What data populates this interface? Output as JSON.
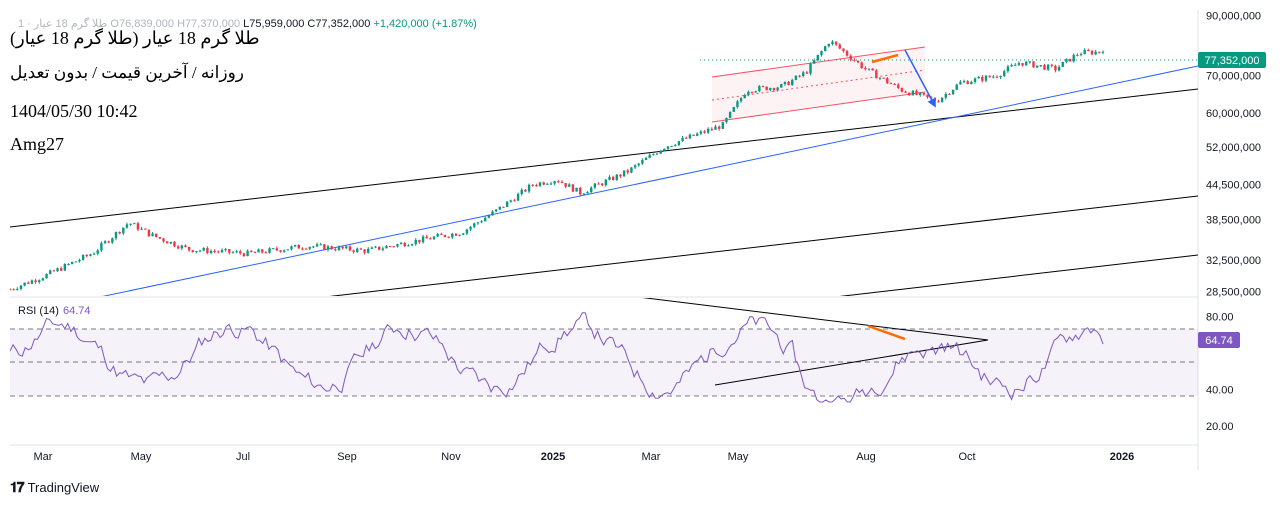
{
  "header": {
    "ohlc_prefix": "طلا گرم 18 عیار · 1",
    "open": "O76,839,000",
    "high": "H77,370,000",
    "low": "L75,959,000",
    "close": "C77,352,000",
    "change": "+1,420,000 (+1.87%)"
  },
  "annotations": {
    "title": "طلا گرم 18 عیار (طلا گرم 18 عیار)",
    "subtitle": "روزانه / آخرین قیمت / بدون تعدیل",
    "datetime": "1404/05/30 10:42",
    "author": "Amg27"
  },
  "brand": {
    "name": "TradingView"
  },
  "rsi": {
    "label": "RSI (14)",
    "value": "64.74"
  },
  "price_badge": "77,352,000",
  "rsi_badge": "64.74",
  "colors": {
    "up": "#089981",
    "down": "#f23645",
    "rsi": "#7e57c2",
    "trend_blue": "#2962ff",
    "channel": "#f7525f",
    "orange": "#ff6d00",
    "badge_green": "#089981",
    "badge_purple": "#7e57c2"
  },
  "chart_data": [
    {
      "type": "candlestick",
      "title": "",
      "ylim": [
        28000000,
        92000000
      ],
      "y_scale": "log",
      "y_ticks": [
        "90,000,000",
        "70,000,000",
        "60,000,000",
        "52,000,000",
        "44,500,000",
        "38,500,000",
        "32,500,000",
        "28,500,000"
      ],
      "y_tick_values": [
        90000000,
        70000000,
        60000000,
        52000000,
        44500000,
        38500000,
        32500000,
        28500000
      ],
      "x_ticks": [
        "Mar",
        "May",
        "Jul",
        "Sep",
        "Nov",
        "2025",
        "Mar",
        "May",
        "Aug",
        "Oct",
        "2026"
      ],
      "last_price": 77352000,
      "price_path": [
        {
          "x": 0,
          "y": 28800000
        },
        {
          "x": 0.03,
          "y": 30500000
        },
        {
          "x": 0.07,
          "y": 33500000
        },
        {
          "x": 0.1,
          "y": 38000000
        },
        {
          "x": 0.12,
          "y": 36000000
        },
        {
          "x": 0.15,
          "y": 34000000
        },
        {
          "x": 0.2,
          "y": 33400000
        },
        {
          "x": 0.25,
          "y": 34500000
        },
        {
          "x": 0.3,
          "y": 33800000
        },
        {
          "x": 0.35,
          "y": 35500000
        },
        {
          "x": 0.38,
          "y": 36500000
        },
        {
          "x": 0.41,
          "y": 40000000
        },
        {
          "x": 0.44,
          "y": 44500000
        },
        {
          "x": 0.46,
          "y": 45500000
        },
        {
          "x": 0.48,
          "y": 43000000
        },
        {
          "x": 0.52,
          "y": 47000000
        },
        {
          "x": 0.55,
          "y": 52000000
        },
        {
          "x": 0.57,
          "y": 54000000
        },
        {
          "x": 0.6,
          "y": 57000000
        },
        {
          "x": 0.62,
          "y": 66000000
        },
        {
          "x": 0.65,
          "y": 67000000
        },
        {
          "x": 0.67,
          "y": 71000000
        },
        {
          "x": 0.69,
          "y": 81000000
        },
        {
          "x": 0.72,
          "y": 72000000
        },
        {
          "x": 0.75,
          "y": 66000000
        },
        {
          "x": 0.78,
          "y": 63000000
        },
        {
          "x": 0.8,
          "y": 68000000
        },
        {
          "x": 0.83,
          "y": 70000000
        },
        {
          "x": 0.85,
          "y": 74000000
        },
        {
          "x": 0.88,
          "y": 72000000
        },
        {
          "x": 0.9,
          "y": 77000000
        },
        {
          "x": 0.92,
          "y": 77352000
        }
      ]
    },
    {
      "type": "line",
      "title": "",
      "series": [
        {
          "name": "RSI (14)",
          "last": 64.74
        }
      ],
      "ylim": [
        10,
        90
      ],
      "y_ticks": [
        "80.00",
        "40.00",
        "20.00"
      ],
      "y_tick_values": [
        80,
        40,
        20
      ],
      "levels": [
        70,
        50,
        30
      ]
    }
  ]
}
